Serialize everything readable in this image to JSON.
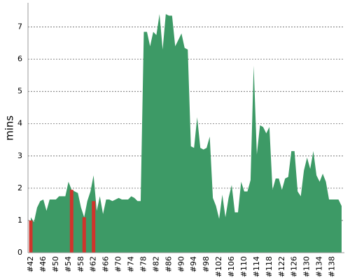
{
  "chart_data": {
    "type": "area",
    "y_label": "mins",
    "categories": [
      "#42",
      null,
      null,
      null,
      "#46",
      null,
      null,
      null,
      "#50",
      null,
      null,
      null,
      "#54",
      null,
      null,
      null,
      "#58",
      null,
      null,
      null,
      "#62",
      null,
      null,
      null,
      "#66",
      null,
      null,
      null,
      "#70",
      null,
      null,
      null,
      "#74",
      null,
      null,
      null,
      "#78",
      null,
      null,
      null,
      "#82",
      null,
      null,
      null,
      "#86",
      null,
      null,
      null,
      "#90",
      null,
      null,
      null,
      "#94",
      null,
      null,
      null,
      "#98",
      null,
      null,
      null,
      "#102",
      null,
      null,
      null,
      "#106",
      null,
      null,
      null,
      "#110",
      null,
      null,
      null,
      "#114",
      null,
      null,
      null,
      "#118",
      null,
      null,
      null,
      "#122",
      null,
      null,
      null,
      "#126",
      null,
      null,
      null,
      "#130",
      null,
      null,
      null,
      "#134",
      null,
      null,
      null,
      "#138",
      null,
      null,
      null
    ],
    "series": [
      {
        "color": "#3d9a66",
        "values": [
          1.1,
          0.95,
          1.4,
          1.6,
          1.65,
          1.3,
          1.65,
          1.65,
          1.65,
          1.75,
          1.75,
          1.75,
          2.2,
          1.95,
          1.9,
          1.85,
          1.4,
          1.1,
          1.6,
          1.9,
          2.4,
          1.3,
          1.75,
          1.2,
          1.65,
          1.65,
          1.6,
          1.65,
          1.7,
          1.65,
          1.65,
          1.65,
          1.75,
          1.7,
          1.6,
          1.6,
          6.85,
          6.85,
          6.4,
          6.85,
          6.75,
          7.4,
          6.3,
          7.4,
          7.35,
          7.35,
          6.4,
          6.6,
          6.8,
          6.35,
          6.3,
          3.3,
          3.25,
          4.2,
          3.25,
          3.2,
          3.25,
          3.6,
          1.7,
          1.45,
          1.05,
          1.8,
          1.1,
          1.7,
          2.1,
          1.25,
          1.25,
          2.2,
          1.9,
          1.9,
          2.25,
          5.8,
          3.05,
          3.95,
          3.9,
          3.7,
          3.9,
          1.95,
          2.3,
          2.3,
          1.95,
          2.3,
          2.35,
          3.15,
          3.15,
          1.9,
          1.75,
          2.55,
          2.95,
          2.6,
          3.15,
          2.4,
          2.2,
          2.45,
          2.2,
          1.65,
          1.65,
          1.65,
          1.65,
          1.45
        ]
      },
      {
        "color": "#d0342c",
        "type": "bar",
        "values": [
          1.0,
          null,
          null,
          null,
          null,
          null,
          null,
          null,
          null,
          null,
          null,
          null,
          null,
          1.95,
          null,
          null,
          null,
          1.1,
          null,
          null,
          1.6,
          null,
          null,
          null,
          null,
          null,
          null,
          null,
          null,
          null,
          null,
          null,
          null,
          null,
          null,
          null,
          null,
          null,
          null,
          null,
          null,
          null,
          null,
          null,
          null,
          null,
          null,
          null,
          null,
          null,
          null,
          null,
          null,
          null,
          null,
          null,
          null,
          null,
          null,
          null,
          null,
          null,
          null,
          null,
          null,
          null,
          null,
          null,
          null,
          null,
          null,
          null,
          null,
          null,
          null,
          null,
          null,
          null,
          null,
          null,
          null,
          null,
          null,
          null,
          null,
          null,
          null,
          null,
          null,
          null,
          null,
          null,
          null,
          null,
          null,
          null,
          null,
          null,
          null,
          null
        ]
      }
    ],
    "ylim": [
      0,
      7.75
    ],
    "yticks": [
      0,
      1,
      2,
      3,
      4,
      5,
      6,
      7
    ],
    "grid": true
  }
}
